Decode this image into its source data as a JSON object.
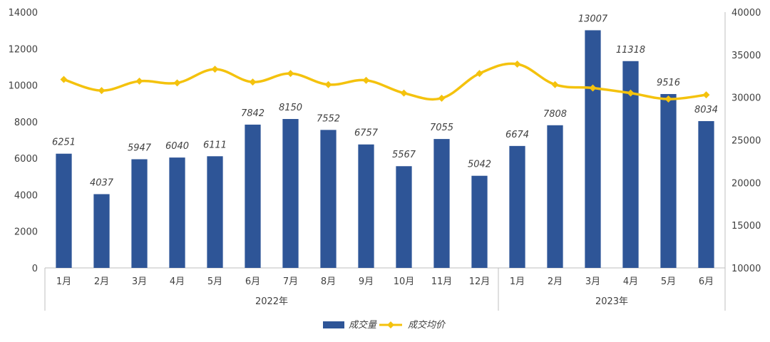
{
  "chart_data": {
    "type": "bar",
    "categories": [
      "1月",
      "2月",
      "3月",
      "4月",
      "5月",
      "6月",
      "7月",
      "8月",
      "9月",
      "10月",
      "11月",
      "12月",
      "1月",
      "2月",
      "3月",
      "4月",
      "5月",
      "6月"
    ],
    "groups": [
      {
        "label": "2022年",
        "count": 12
      },
      {
        "label": "2023年",
        "count": 6
      }
    ],
    "series": [
      {
        "name": "成交量",
        "type": "bar",
        "axis": "left",
        "color": "#2E5597",
        "values": [
          6251,
          4037,
          5947,
          6040,
          6111,
          7842,
          8150,
          7552,
          6757,
          5567,
          7055,
          5042,
          6674,
          7808,
          13007,
          11318,
          9516,
          8034
        ]
      },
      {
        "name": "成交均价",
        "type": "line",
        "axis": "right",
        "color": "#F4C20D",
        "values": [
          32100,
          30800,
          31900,
          31700,
          33300,
          31800,
          32800,
          31500,
          32000,
          30500,
          29900,
          32800,
          33900,
          31500,
          31100,
          30500,
          29800,
          30300
        ]
      }
    ],
    "y_left": {
      "ylim": [
        0,
        14000
      ],
      "ticks": [
        0,
        2000,
        4000,
        6000,
        8000,
        10000,
        12000,
        14000
      ]
    },
    "y_right": {
      "ylim": [
        10000,
        40000
      ],
      "ticks": [
        10000,
        15000,
        20000,
        25000,
        30000,
        35000,
        40000
      ]
    },
    "legend": {
      "position": "bottom"
    },
    "grid": false
  }
}
